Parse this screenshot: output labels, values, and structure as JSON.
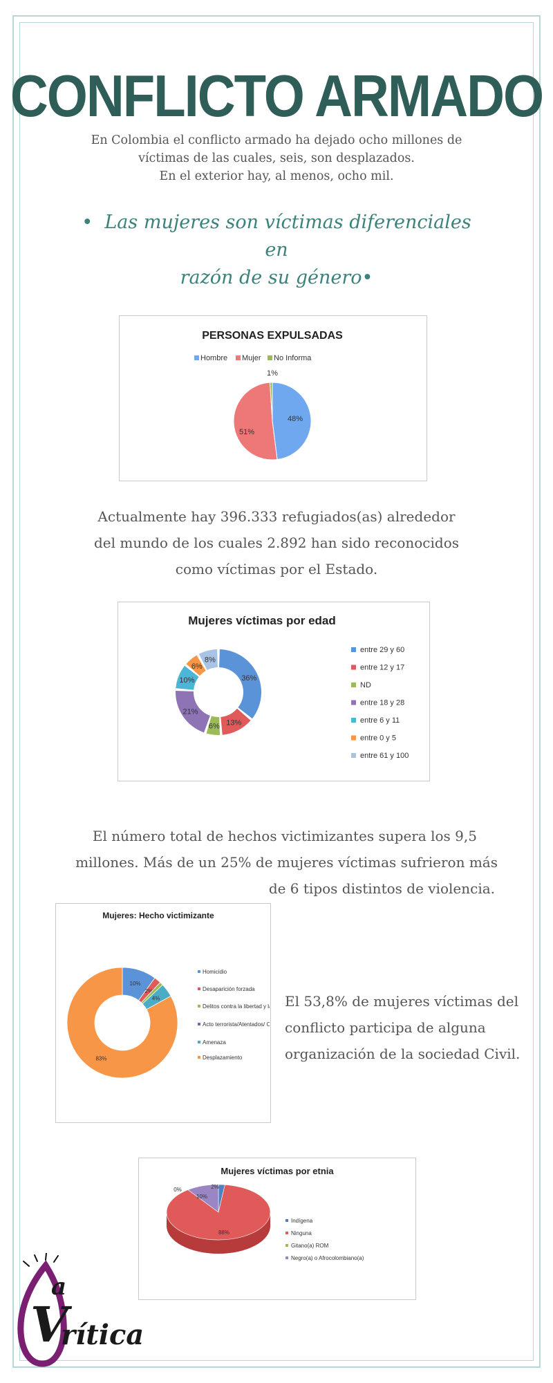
{
  "header": {
    "title": "CONFLICTO ARMADO",
    "intro": [
      "En Colombia el conflicto armado ha dejado ocho millones de",
      "víctimas de las cuales, seis, son desplazados.",
      "En el exterior hay, al menos, ocho mil."
    ],
    "quote": [
      "Las mujeres son víctimas diferenciales en",
      "razón de su género"
    ]
  },
  "paragraphs": {
    "refugiados": [
      "Actualmente hay 396.333 refugiados(as) alrededor",
      "del mundo de los cuales 2.892 han sido reconocidos",
      "como víctimas por el Estado."
    ],
    "hechos": [
      "El número total de hechos victimizantes supera los 9,5",
      "millones. Más de un 25% de mujeres víctimas sufrieron más",
      "de 6 tipos distintos de violencia."
    ],
    "sociedad": [
      "El 53,8% de mujeres víctimas del",
      "conflicto participa de alguna",
      "organización de la sociedad Civil."
    ]
  },
  "logo": {
    "text_a": "a",
    "text_b": "rítica",
    "letters": "V"
  },
  "colors": {
    "blue": "#4f81bd",
    "red": "#e05a5a",
    "green": "#9bbb59",
    "purple": "#8064a2",
    "cyan": "#4bacc6",
    "orange": "#f79646",
    "lightblue": "#a7c3e6"
  },
  "chart_data": [
    {
      "type": "pie",
      "title": "PERSONAS EXPULSADAS",
      "categories": [
        "Hombre",
        "Mujer",
        "No Informa"
      ],
      "values": [
        48,
        51,
        1
      ],
      "labels": [
        "48%",
        "51%",
        "1%"
      ],
      "colors": [
        "#6fa8ef",
        "#ee7777",
        "#9bbb59"
      ],
      "legend": "top"
    },
    {
      "type": "pie",
      "title": "Mujeres víctimas por edad",
      "categories": [
        "entre 29 y 60",
        "entre 12 y 17",
        "ND",
        "entre 18 y 28",
        "entre 6 y 11",
        "entre 0 y 5",
        "entre 61 y 100"
      ],
      "values": [
        36,
        13,
        6,
        21,
        10,
        6,
        8
      ],
      "labels": [
        "36%",
        "13%",
        "6%",
        "21%",
        "10%",
        "6%",
        "8%"
      ],
      "colors": [
        "#5b93d8",
        "#e05a5a",
        "#9bbb59",
        "#8f74b5",
        "#4bb6d6",
        "#f79646",
        "#a7c3e6"
      ],
      "legend": "right"
    },
    {
      "type": "pie",
      "title": "Mujeres: Hecho victimizante",
      "categories": [
        "Homicidio",
        "Desaparición forzada",
        "Delitos contra la libertad y la integridad sexual",
        "Acto terrorista/Atentados/ Combates/Hostigamientos",
        "Amenaza",
        "Desplazamiento"
      ],
      "values": [
        10,
        2,
        1,
        0,
        4,
        83
      ],
      "labels": [
        "10%",
        "2%",
        "",
        "",
        "4%",
        "83%"
      ],
      "colors": [
        "#5b93d8",
        "#e05a5a",
        "#9bbb59",
        "#8064a2",
        "#4bacc6",
        "#f79646"
      ],
      "legend": "right"
    },
    {
      "type": "pie",
      "title": "Mujeres víctimas por etnia",
      "categories": [
        "Indígena",
        "Ninguna",
        "Gitano(a) ROM",
        "Negro(a) o Afrocolombiano(a)"
      ],
      "values": [
        2,
        88,
        0,
        10
      ],
      "labels": [
        "2%",
        "88%",
        "0%",
        "10%"
      ],
      "colors": [
        "#4f81bd",
        "#e05a5a",
        "#9bbb59",
        "#9a86c4"
      ],
      "legend": "right"
    }
  ]
}
